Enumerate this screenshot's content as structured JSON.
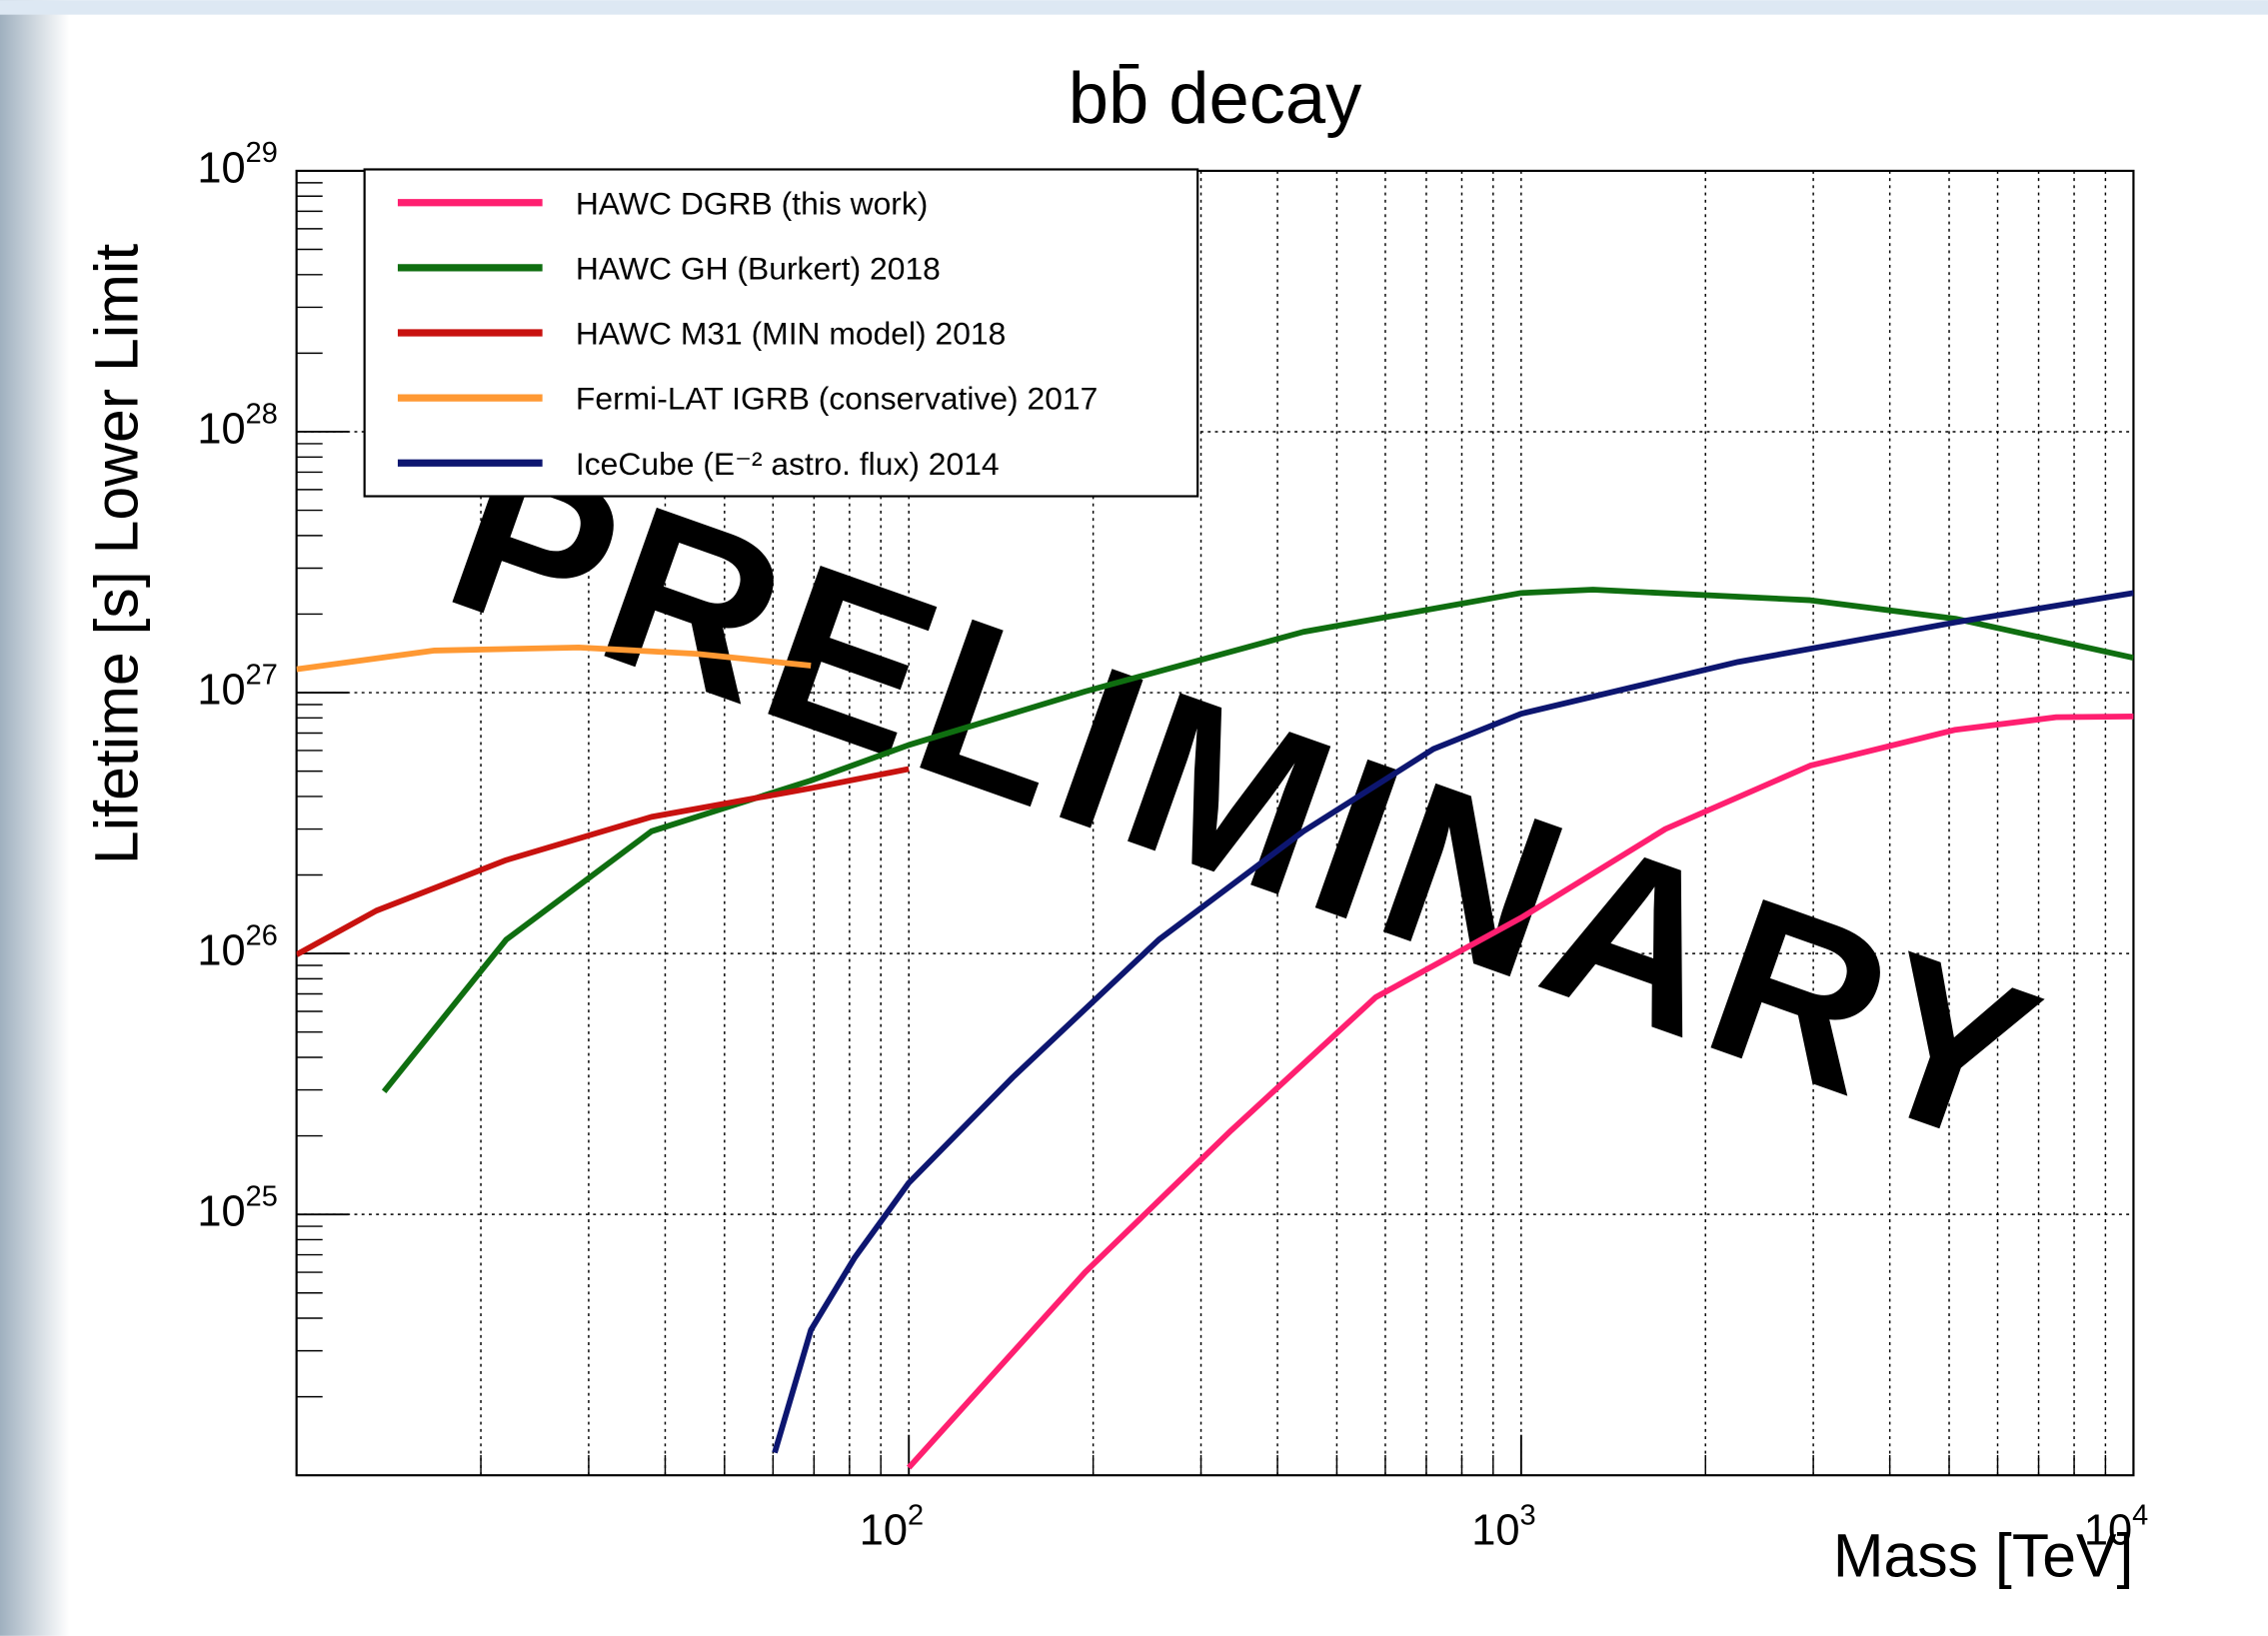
{
  "chart_data": {
    "type": "line",
    "title": "bb̄ decay",
    "xlabel": "Mass [TeV]",
    "ylabel": "Lifetime [s] Lower Limit",
    "annotation": "PRELIMINARY",
    "xscale": "log",
    "yscale": "log",
    "xlim": [
      10,
      10000
    ],
    "ylim": [
      1e+24,
      1e+29
    ],
    "xticks": [
      {
        "value": 100,
        "label": "10",
        "exponent": "2"
      },
      {
        "value": 1000,
        "label": "10",
        "exponent": "3"
      },
      {
        "value": 10000,
        "label": "10",
        "exponent": "4"
      }
    ],
    "yticks": [
      {
        "value": 1e+25,
        "label": "10",
        "exponent": "25"
      },
      {
        "value": 1e+26,
        "label": "10",
        "exponent": "26"
      },
      {
        "value": 1e+27,
        "label": "10",
        "exponent": "27"
      },
      {
        "value": 1e+28,
        "label": "10",
        "exponent": "28"
      },
      {
        "value": 1e+29,
        "label": "10",
        "exponent": "29"
      }
    ],
    "xminorticks": [
      20,
      30,
      40,
      50,
      60,
      70,
      80,
      90,
      200,
      300,
      400,
      500,
      600,
      700,
      800,
      900,
      2000,
      3000,
      4000,
      5000,
      6000,
      7000,
      8000,
      9000
    ],
    "yminorticks": [
      2e+24,
      3e+24,
      4e+24,
      5e+24,
      6e+24,
      7e+24,
      8e+24,
      9e+24,
      2e+25,
      3e+25,
      4e+25,
      5e+25,
      6e+25,
      7e+25,
      8e+25,
      9e+25,
      2e+26,
      3e+26,
      4e+26,
      5e+26,
      6e+26,
      7e+26,
      8e+26,
      9e+26,
      2e+27,
      3e+27,
      4e+27,
      5e+27,
      6e+27,
      7e+27,
      8e+27,
      9e+27,
      2e+28,
      3e+28,
      4e+28,
      5e+28,
      6e+28,
      7e+28,
      8e+28,
      9e+28
    ],
    "grid": true,
    "legend": "top-left",
    "series": [
      {
        "name": "HAWC DGRB (this work)",
        "color": "#ff1f70",
        "x": [
          100,
          194,
          336,
          579,
          1000,
          1720,
          2965,
          5120,
          7480,
          10000
        ],
        "values": [
          1.07e+24,
          6e+24,
          2.1e+25,
          6.8e+25,
          1.37e+26,
          3e+26,
          5.25e+26,
          7.2e+26,
          8.05e+26,
          8.1e+26
        ]
      },
      {
        "name": "HAWC GH (Burkert) 2018",
        "color": "#0f6e10",
        "x": [
          13.9,
          22,
          38,
          69.2,
          100,
          194,
          441,
          1000,
          1310,
          2965,
          5120,
          10000
        ],
        "values": [
          2.96e+25,
          1.13e+26,
          2.94e+26,
          4.6e+26,
          6.3e+26,
          1.01e+27,
          1.71e+27,
          2.41e+27,
          2.48e+27,
          2.26e+27,
          1.92e+27,
          1.36e+27
        ]
      },
      {
        "name": "HAWC M31 (MIN model) 2018",
        "color": "#c8120f",
        "x": [
          10,
          13.5,
          22,
          38,
          69.2,
          100
        ],
        "values": [
          9.9e+25,
          1.46e+26,
          2.28e+26,
          3.34e+26,
          4.3e+26,
          5.1e+26
        ]
      },
      {
        "name": "Fermi-LAT IGRB (conservative) 2017",
        "color": "#ff9933",
        "x": [
          10,
          16.8,
          28.9,
          44.8,
          69.2
        ],
        "values": [
          1.23e+27,
          1.45e+27,
          1.49e+27,
          1.41e+27,
          1.27e+27
        ]
      },
      {
        "name": "IceCube (E⁻² astro. flux) 2014",
        "color": "#0d1670",
        "x": [
          60.4,
          69.2,
          81.5,
          100,
          148,
          256,
          441,
          719,
          1000,
          2260,
          5120,
          10000
        ],
        "values": [
          1.22e+24,
          3.6e+24,
          6.8e+24,
          1.32e+25,
          3.36e+25,
          1.13e+26,
          2.94e+26,
          6.08e+26,
          8.3e+26,
          1.31e+27,
          1.86e+27,
          2.41e+27
        ]
      }
    ]
  }
}
